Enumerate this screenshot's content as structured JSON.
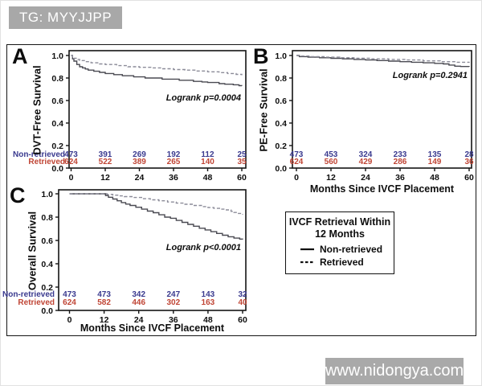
{
  "tag_label": "TG: MYYJJPP",
  "watermark_label": "www.nidongya.com",
  "legend": {
    "title_line1": "IVCF Retrieval Within",
    "title_line2": "12 Months",
    "items": [
      {
        "label": "Non-retrieved",
        "line_style": "solid"
      },
      {
        "label": "Retrieved",
        "line_style": "dashed"
      }
    ]
  },
  "colors": {
    "non_retrieved_text": "#3a3a8f",
    "retrieved_text": "#c04535",
    "solid_curve": "#4a4a52",
    "dashed_curve": "#8c8c99",
    "axis": "#141414",
    "tag_background": "#a8a8a8"
  },
  "chart_data": [
    {
      "panel": "A",
      "type": "line",
      "variant": "kaplan-meier-step",
      "ylabel": "DVT-Free Survival",
      "xlabel": "",
      "annotation": "Logrank p=0.0004",
      "xlim": [
        0,
        60
      ],
      "ylim": [
        0,
        1
      ],
      "xticks": [
        "0",
        "12",
        "24",
        "36",
        "48",
        "60"
      ],
      "yticks": [
        "1.0",
        "0.8",
        "0.6",
        "0.4",
        "0.2",
        "0.0"
      ],
      "series": [
        {
          "name": "Non-retrieved",
          "style": "solid",
          "points": [
            [
              0,
              1.0
            ],
            [
              0.5,
              0.97
            ],
            [
              1,
              0.95
            ],
            [
              2,
              0.92
            ],
            [
              3,
              0.9
            ],
            [
              4,
              0.89
            ],
            [
              5,
              0.88
            ],
            [
              6,
              0.87
            ],
            [
              8,
              0.86
            ],
            [
              10,
              0.85
            ],
            [
              12,
              0.84
            ],
            [
              15,
              0.83
            ],
            [
              18,
              0.82
            ],
            [
              22,
              0.81
            ],
            [
              26,
              0.8
            ],
            [
              32,
              0.79
            ],
            [
              38,
              0.78
            ],
            [
              43,
              0.77
            ],
            [
              46,
              0.765
            ],
            [
              48,
              0.76
            ],
            [
              52,
              0.75
            ],
            [
              54,
              0.745
            ],
            [
              57,
              0.74
            ],
            [
              59,
              0.732
            ],
            [
              60,
              0.73
            ]
          ]
        },
        {
          "name": "Retrieved",
          "style": "dashed",
          "points": [
            [
              0,
              1.0
            ],
            [
              0.5,
              0.985
            ],
            [
              1,
              0.975
            ],
            [
              2,
              0.965
            ],
            [
              3,
              0.955
            ],
            [
              5,
              0.945
            ],
            [
              7,
              0.935
            ],
            [
              10,
              0.925
            ],
            [
              12,
              0.92
            ],
            [
              16,
              0.91
            ],
            [
              20,
              0.9
            ],
            [
              24,
              0.895
            ],
            [
              28,
              0.89
            ],
            [
              32,
              0.882
            ],
            [
              36,
              0.875
            ],
            [
              40,
              0.87
            ],
            [
              44,
              0.862
            ],
            [
              48,
              0.855
            ],
            [
              52,
              0.848
            ],
            [
              55,
              0.84
            ],
            [
              58,
              0.832
            ],
            [
              60,
              0.825
            ]
          ]
        }
      ],
      "at_risk": {
        "show_labels": true,
        "rows": [
          {
            "label": "Non-retrieved",
            "values": [
              "473",
              "391",
              "269",
              "192",
              "112",
              "25"
            ]
          },
          {
            "label": "Retrieved",
            "values": [
              "624",
              "522",
              "389",
              "265",
              "140",
              "35"
            ]
          }
        ]
      }
    },
    {
      "panel": "B",
      "type": "line",
      "variant": "kaplan-meier-step",
      "ylabel": "PE-Free Survival",
      "xlabel": "Months Since IVCF Placement",
      "annotation": "Logrank p=0.2941",
      "xlim": [
        0,
        60
      ],
      "ylim": [
        0,
        1
      ],
      "xticks": [
        "0",
        "12",
        "24",
        "36",
        "48",
        "60"
      ],
      "yticks": [
        "1.0",
        "0.8",
        "0.6",
        "0.4",
        "0.2",
        "0.0"
      ],
      "series": [
        {
          "name": "Non-retrieved",
          "style": "solid",
          "points": [
            [
              0,
              1.0
            ],
            [
              1,
              0.99
            ],
            [
              4,
              0.985
            ],
            [
              8,
              0.98
            ],
            [
              12,
              0.975
            ],
            [
              16,
              0.97
            ],
            [
              20,
              0.965
            ],
            [
              24,
              0.96
            ],
            [
              28,
              0.955
            ],
            [
              32,
              0.95
            ],
            [
              36,
              0.945
            ],
            [
              40,
              0.94
            ],
            [
              44,
              0.935
            ],
            [
              48,
              0.93
            ],
            [
              51,
              0.925
            ],
            [
              53,
              0.915
            ],
            [
              55,
              0.905
            ],
            [
              57,
              0.902
            ],
            [
              60,
              0.9
            ]
          ]
        },
        {
          "name": "Retrieved",
          "style": "dashed",
          "points": [
            [
              0,
              1.0
            ],
            [
              1,
              0.995
            ],
            [
              5,
              0.99
            ],
            [
              10,
              0.985
            ],
            [
              15,
              0.98
            ],
            [
              20,
              0.975
            ],
            [
              26,
              0.97
            ],
            [
              32,
              0.965
            ],
            [
              38,
              0.96
            ],
            [
              44,
              0.952
            ],
            [
              50,
              0.945
            ],
            [
              55,
              0.94
            ],
            [
              60,
              0.935
            ]
          ]
        }
      ],
      "at_risk": {
        "show_labels": false,
        "rows": [
          {
            "label": "Non-retrieved",
            "values": [
              "473",
              "453",
              "324",
              "233",
              "135",
              "28"
            ]
          },
          {
            "label": "Retrieved",
            "values": [
              "624",
              "560",
              "429",
              "286",
              "149",
              "36"
            ]
          }
        ]
      }
    },
    {
      "panel": "C",
      "type": "line",
      "variant": "kaplan-meier-step",
      "ylabel": "Overall Survival",
      "xlabel": "Months Since IVCF Placement",
      "annotation": "Logrank p<0.0001",
      "xlim": [
        0,
        60
      ],
      "ylim": [
        0,
        1
      ],
      "xticks": [
        "0",
        "12",
        "24",
        "36",
        "48",
        "60"
      ],
      "yticks": [
        "1.0",
        "0.8",
        "0.6",
        "0.4",
        "0.2",
        "0.0"
      ],
      "series": [
        {
          "name": "Non-retrieved",
          "style": "solid",
          "points": [
            [
              0,
              1.0
            ],
            [
              11.5,
              1.0
            ],
            [
              12.5,
              0.985
            ],
            [
              13.5,
              0.97
            ],
            [
              15,
              0.955
            ],
            [
              16.5,
              0.94
            ],
            [
              18,
              0.925
            ],
            [
              19.5,
              0.912
            ],
            [
              21,
              0.9
            ],
            [
              23,
              0.885
            ],
            [
              25,
              0.868
            ],
            [
              27,
              0.852
            ],
            [
              29,
              0.838
            ],
            [
              31,
              0.82
            ],
            [
              33,
              0.8
            ],
            [
              35,
              0.79
            ],
            [
              37,
              0.772
            ],
            [
              39,
              0.755
            ],
            [
              41,
              0.738
            ],
            [
              43,
              0.722
            ],
            [
              45,
              0.705
            ],
            [
              47,
              0.69
            ],
            [
              49,
              0.675
            ],
            [
              51,
              0.66
            ],
            [
              53,
              0.645
            ],
            [
              55,
              0.632
            ],
            [
              57,
              0.62
            ],
            [
              59,
              0.612
            ],
            [
              60,
              0.608
            ]
          ]
        },
        {
          "name": "Retrieved",
          "style": "dashed",
          "points": [
            [
              0,
              1.0
            ],
            [
              12,
              1.0
            ],
            [
              13,
              0.995
            ],
            [
              15,
              0.988
            ],
            [
              17,
              0.982
            ],
            [
              19,
              0.976
            ],
            [
              22,
              0.968
            ],
            [
              25,
              0.958
            ],
            [
              28,
              0.948
            ],
            [
              31,
              0.94
            ],
            [
              34,
              0.93
            ],
            [
              37,
              0.92
            ],
            [
              40,
              0.91
            ],
            [
              43,
              0.9
            ],
            [
              46,
              0.89
            ],
            [
              48,
              0.882
            ],
            [
              50,
              0.875
            ],
            [
              52,
              0.868
            ],
            [
              54,
              0.862
            ],
            [
              56,
              0.85
            ],
            [
              57,
              0.84
            ],
            [
              58,
              0.832
            ],
            [
              60,
              0.822
            ]
          ]
        }
      ],
      "at_risk": {
        "show_labels": true,
        "rows": [
          {
            "label": "Non-retrieved",
            "values": [
              "473",
              "473",
              "342",
              "247",
              "143",
              "32"
            ]
          },
          {
            "label": "Retrieved",
            "values": [
              "624",
              "582",
              "446",
              "302",
              "163",
              "40"
            ]
          }
        ]
      }
    }
  ]
}
